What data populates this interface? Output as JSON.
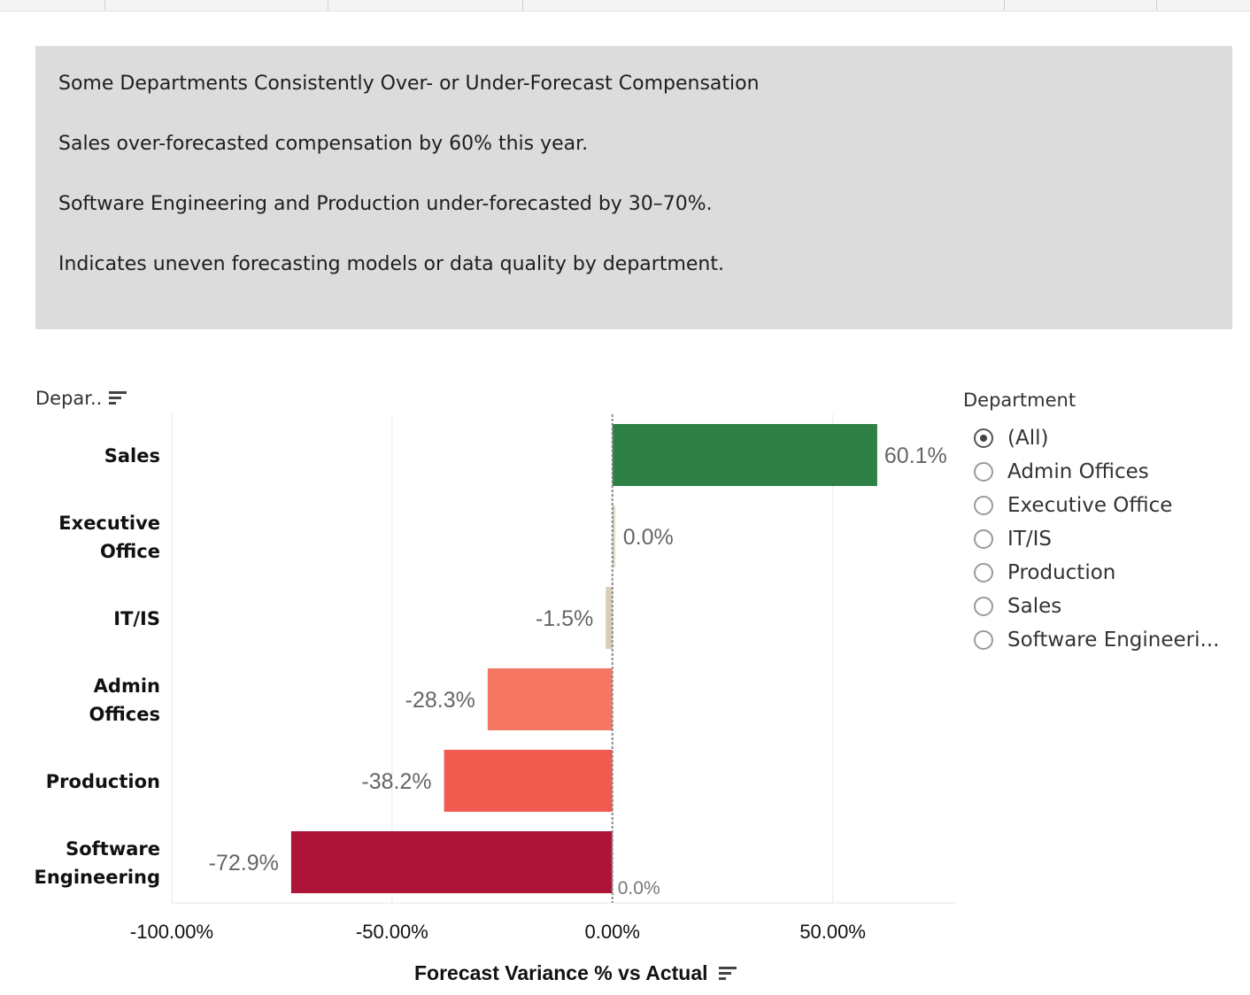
{
  "insight": {
    "lines": [
      "Some Departments Consistently Over- or Under-Forecast Compensation",
      "Sales over-forecasted compensation by 60% this year.",
      "Software Engineering and Production under-forecasted by 30–70%.",
      "Indicates uneven forecasting models or data quality by department."
    ]
  },
  "axis_header": "Depar..",
  "x_title": "Forecast Variance % vs Actual",
  "filter": {
    "title": "Department",
    "options": [
      {
        "label": "(All)",
        "checked": true
      },
      {
        "label": "Admin Offices",
        "checked": false
      },
      {
        "label": "Executive Office",
        "checked": false
      },
      {
        "label": "IT/IS",
        "checked": false
      },
      {
        "label": "Production",
        "checked": false
      },
      {
        "label": "Sales",
        "checked": false
      },
      {
        "label": "Software Engineeri...",
        "checked": false
      }
    ]
  },
  "chart_data": {
    "type": "bar",
    "orientation": "horizontal",
    "categories": [
      "Sales",
      "Executive Office",
      "IT/IS",
      "Admin Offices",
      "Production",
      "Software Engineering"
    ],
    "category_lines": [
      [
        "Sales"
      ],
      [
        "Executive",
        "Office"
      ],
      [
        "IT/IS"
      ],
      [
        "Admin",
        "Offices"
      ],
      [
        "Production"
      ],
      [
        "Software",
        "Engineering"
      ]
    ],
    "values": [
      60.1,
      0.0,
      -1.5,
      -28.3,
      -38.2,
      -72.9
    ],
    "value_labels": [
      "60.1%",
      "0.0%",
      "-1.5%",
      "-28.3%",
      "-38.2%",
      "-72.9%"
    ],
    "colors": [
      "#2e8044",
      "#d8d2c2",
      "#d8cdb8",
      "#f47663",
      "#f05a4f",
      "#ac1438"
    ],
    "reference_line_label": "0.0%",
    "xlim": [
      -100,
      78
    ],
    "xticks": [
      -100,
      -50,
      0,
      50
    ],
    "xtick_labels": [
      "-100.00%",
      "-50.00%",
      "0.00%",
      "50.00%"
    ],
    "xlabel": "Forecast Variance % vs Actual",
    "ylabel": "Depar..",
    "grid": "vertical"
  }
}
